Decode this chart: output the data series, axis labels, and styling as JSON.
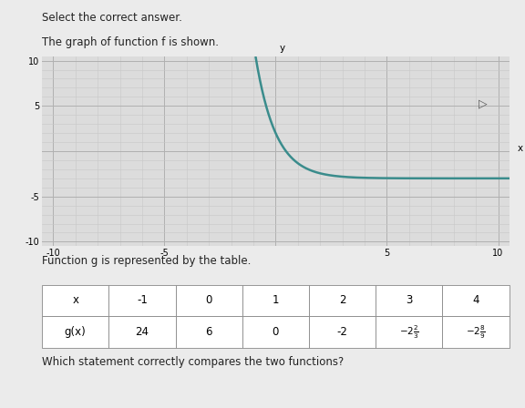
{
  "title_top": "Select the correct answer.",
  "title_graph": "The graph of function f is shown.",
  "title_table": "Function g is represented by the table.",
  "title_bottom": "Which statement correctly compares the two functions?",
  "graph_xlim": [
    -10.5,
    10.5
  ],
  "graph_ylim": [
    -10.5,
    10.5
  ],
  "curve_color": "#3a8c8c",
  "curve_linewidth": 1.8,
  "grid_minor_color": "#c8c8c8",
  "grid_major_color": "#b0b0b0",
  "bg_color": "#dcdcdc",
  "panel_bg": "#ebebeb",
  "f_a": -3.0,
  "f_b": 5.0,
  "f_r": 0.3333333333
}
